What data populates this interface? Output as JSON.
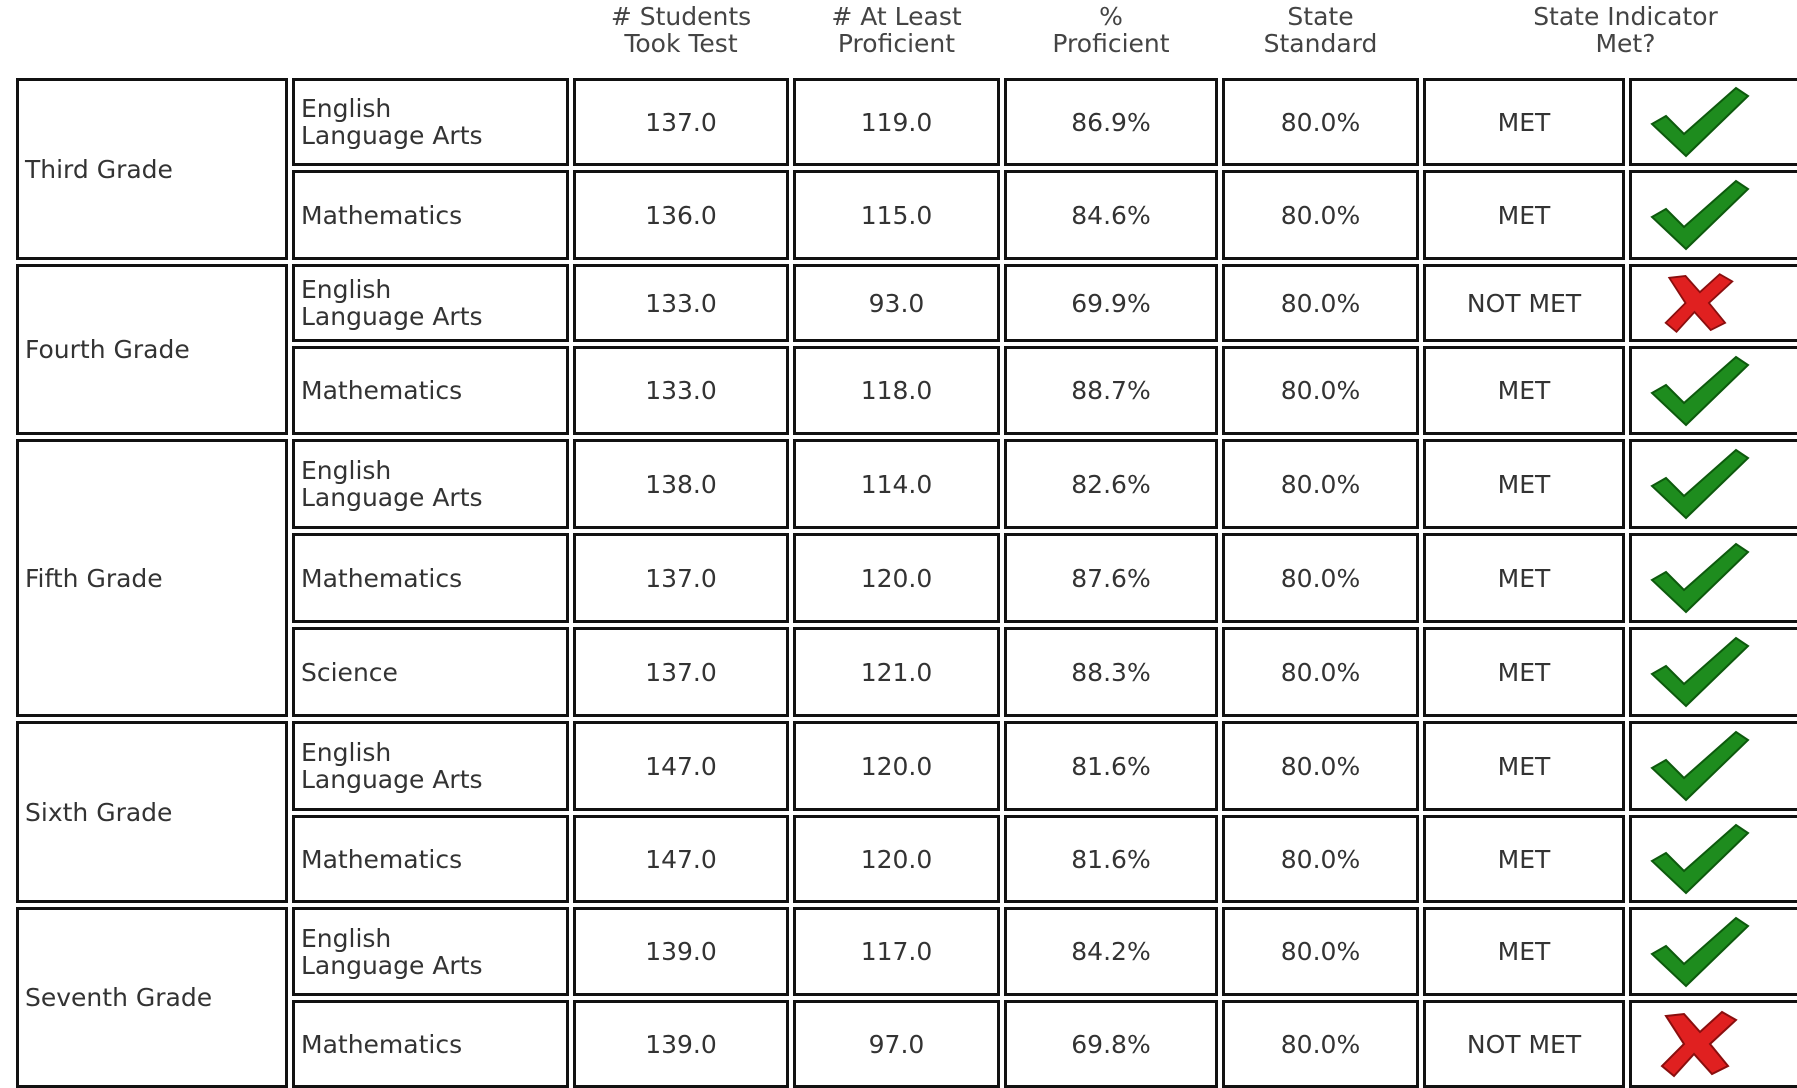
{
  "header": {
    "columns": [
      {
        "lines": [
          "# Students",
          "Took Test"
        ]
      },
      {
        "lines": [
          "# At Least",
          "Proficient"
        ]
      },
      {
        "lines": [
          "%",
          "Proficient"
        ]
      },
      {
        "lines": [
          "State",
          "Standard"
        ]
      },
      {
        "lines": [
          "State Indicator",
          "Met?"
        ]
      }
    ]
  },
  "grades": [
    {
      "name": "Third Grade",
      "subjects": [
        {
          "subject": [
            "English",
            "Language Arts"
          ],
          "cells": [
            "137.0",
            "119.0",
            "86.9%",
            "80.0%"
          ],
          "status": "MET",
          "icon": "check"
        },
        {
          "subject": [
            "Mathematics"
          ],
          "cells": [
            "136.0",
            "115.0",
            "84.6%",
            "80.0%"
          ],
          "status": "MET",
          "icon": "check"
        }
      ]
    },
    {
      "name": "Fourth Grade",
      "subjects": [
        {
          "subject": [
            "English",
            "Language Arts"
          ],
          "cells": [
            "133.0",
            "93.0",
            "69.9%",
            "80.0%"
          ],
          "status": "NOT MET",
          "icon": "cross"
        },
        {
          "subject": [
            "Mathematics"
          ],
          "cells": [
            "133.0",
            "118.0",
            "88.7%",
            "80.0%"
          ],
          "status": "MET",
          "icon": "check"
        }
      ]
    },
    {
      "name": "Fifth Grade",
      "subjects": [
        {
          "subject": [
            "English",
            "Language Arts"
          ],
          "cells": [
            "138.0",
            "114.0",
            "82.6%",
            "80.0%"
          ],
          "status": "MET",
          "icon": "check"
        },
        {
          "subject": [
            "Mathematics"
          ],
          "cells": [
            "137.0",
            "120.0",
            "87.6%",
            "80.0%"
          ],
          "status": "MET",
          "icon": "check"
        },
        {
          "subject": [
            "Science"
          ],
          "cells": [
            "137.0",
            "121.0",
            "88.3%",
            "80.0%"
          ],
          "status": "MET",
          "icon": "check"
        }
      ]
    },
    {
      "name": "Sixth Grade",
      "subjects": [
        {
          "subject": [
            "English",
            "Language Arts"
          ],
          "cells": [
            "147.0",
            "120.0",
            "81.6%",
            "80.0%"
          ],
          "status": "MET",
          "icon": "check"
        },
        {
          "subject": [
            "Mathematics"
          ],
          "cells": [
            "147.0",
            "120.0",
            "81.6%",
            "80.0%"
          ],
          "status": "MET",
          "icon": "check"
        }
      ]
    },
    {
      "name": "Seventh Grade",
      "subjects": [
        {
          "subject": [
            "English",
            "Language Arts"
          ],
          "cells": [
            "139.0",
            "117.0",
            "84.2%",
            "80.0%"
          ],
          "status": "MET",
          "icon": "check"
        },
        {
          "subject": [
            "Mathematics"
          ],
          "cells": [
            "139.0",
            "97.0",
            "69.8%",
            "80.0%"
          ],
          "status": "NOT MET",
          "icon": "cross"
        }
      ]
    }
  ]
}
